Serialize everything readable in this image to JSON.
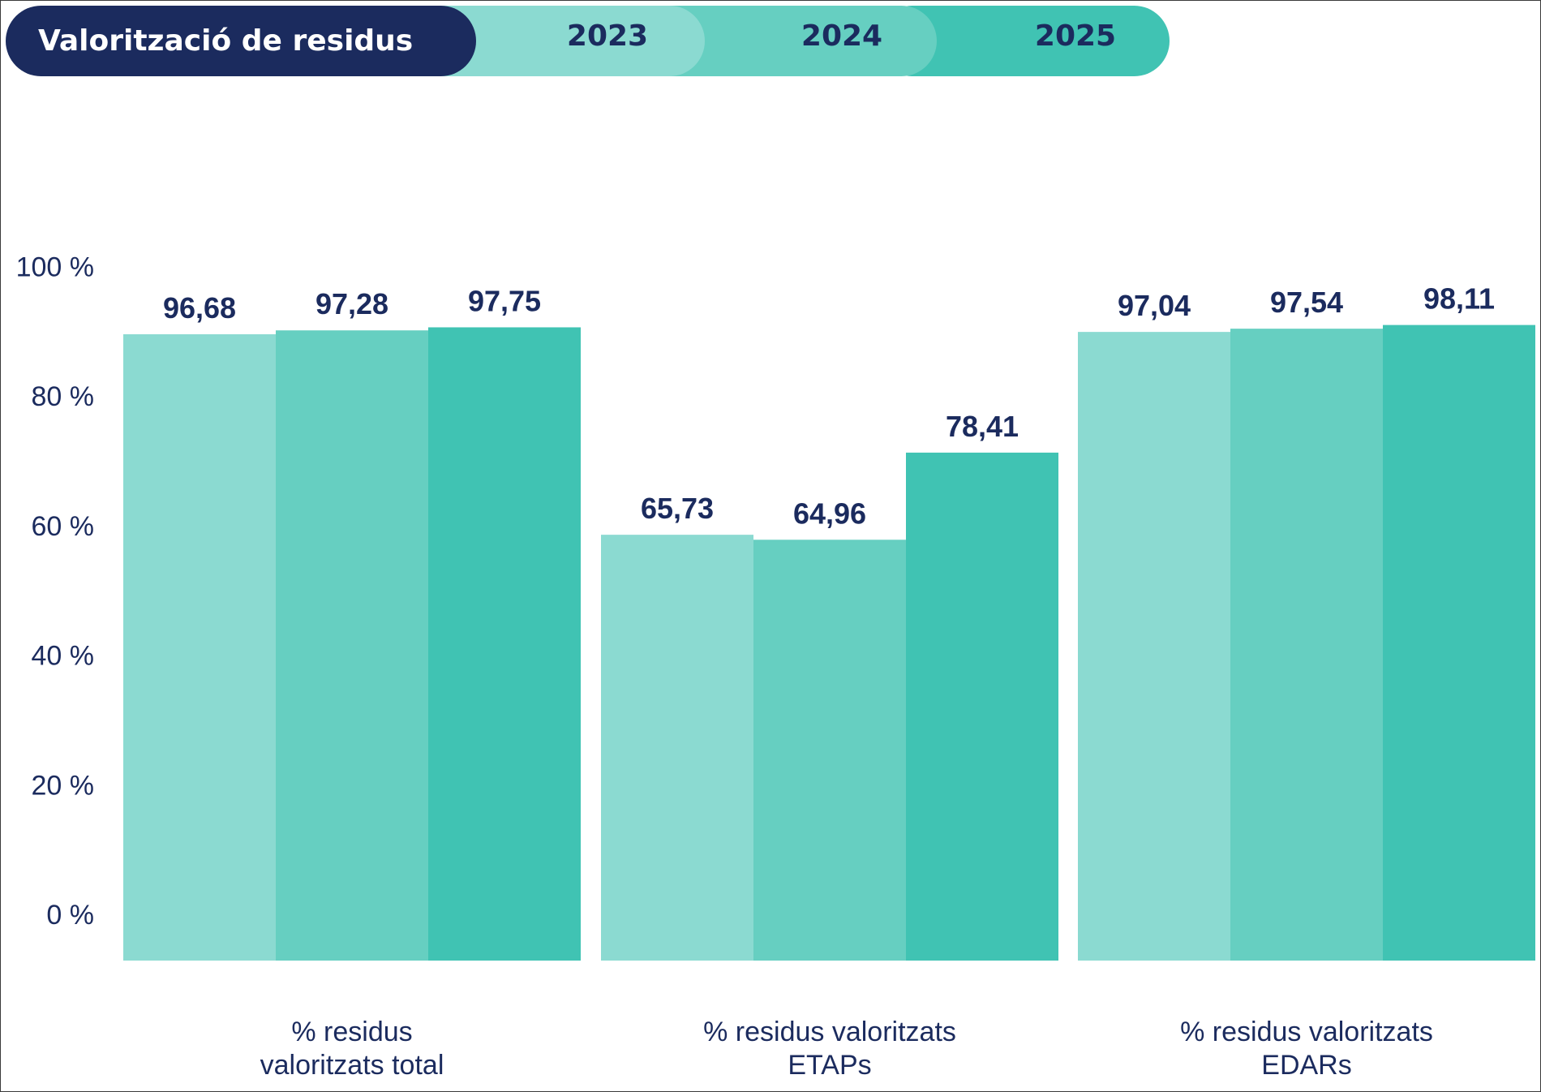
{
  "header": {
    "title": "Valorització de residus",
    "years": [
      "2023",
      "2024",
      "2025"
    ]
  },
  "colors": {
    "navy": "#1b2b5e",
    "series": [
      "#8bdad1",
      "#66cfc1",
      "#40c3b3"
    ]
  },
  "chart_data": {
    "type": "bar",
    "categories": [
      [
        "% residus",
        "valoritzats total"
      ],
      [
        "% residus valoritzats",
        "ETAPs"
      ],
      [
        "% residus valoritzats",
        "EDARs"
      ]
    ],
    "series": [
      {
        "name": "2023",
        "values": [
          96.68,
          65.73,
          97.04
        ],
        "labels": [
          "96,68",
          "65,73",
          "97,04"
        ]
      },
      {
        "name": "2024",
        "values": [
          97.28,
          64.96,
          97.54
        ],
        "labels": [
          "97,28",
          "64,96",
          "97,54"
        ]
      },
      {
        "name": "2025",
        "values": [
          97.75,
          78.41,
          98.11
        ],
        "labels": [
          "97,75",
          "78,41",
          "98,11"
        ]
      }
    ],
    "y_ticks": [
      {
        "value": 0,
        "label": "0 %"
      },
      {
        "value": 20,
        "label": "20 %"
      },
      {
        "value": 40,
        "label": "40 %"
      },
      {
        "value": 60,
        "label": "60 %"
      },
      {
        "value": 80,
        "label": "80 %"
      },
      {
        "value": 100,
        "label": "100 %"
      }
    ],
    "legend_position": "top",
    "grid": false
  }
}
